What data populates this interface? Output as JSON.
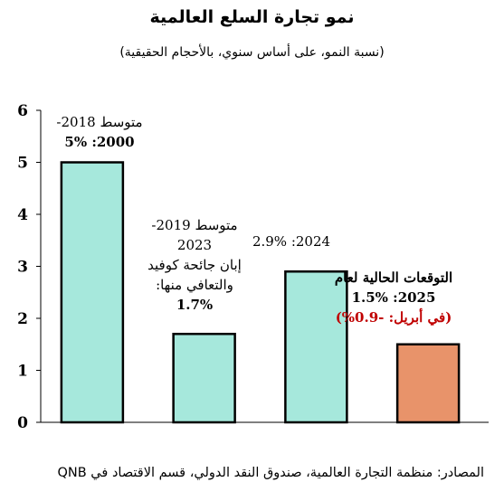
{
  "title": "نمو تجارة السلع العالمية",
  "subtitle": "(نسبة النمو، على أساس سنوي، بالأحجام الحقيقية)",
  "colors": {
    "teal": "#a6e8dc",
    "orange": "#e8936a",
    "red": "#c00000"
  },
  "annotations": {
    "bar1": {
      "line1": "متوسط 2018-",
      "line2": "2000: 5%"
    },
    "bar2": {
      "line1": "متوسط 2019-",
      "line2": "2023",
      "line3": "إبان جائحة كوفيد",
      "line4": "والتعافي منها:",
      "line5": "1.7%"
    },
    "bar3": {
      "line1": "2024: 2.9%"
    },
    "bar4": {
      "line1": "التوقعات الحالية لعام",
      "line2": "2025: 1.5%",
      "line3": "(في أبريل: -0.9%)"
    }
  },
  "source": "المصادر: منظمة التجارة العالمية، صندوق النقد الدولي، قسم الاقتصاد في QNB",
  "chart_data": {
    "type": "bar",
    "categories": [
      "2000-2018",
      "2019-2023",
      "2024",
      "2025"
    ],
    "values": [
      5,
      1.7,
      2.9,
      1.5
    ],
    "bar_colors": [
      "#a6e8dc",
      "#a6e8dc",
      "#a6e8dc",
      "#e8936a"
    ],
    "ylim": [
      0,
      6
    ],
    "yticks": [
      "0",
      "1",
      "2",
      "3",
      "4",
      "5",
      "6"
    ],
    "grid": false,
    "title": "نمو تجارة السلع العالمية"
  }
}
